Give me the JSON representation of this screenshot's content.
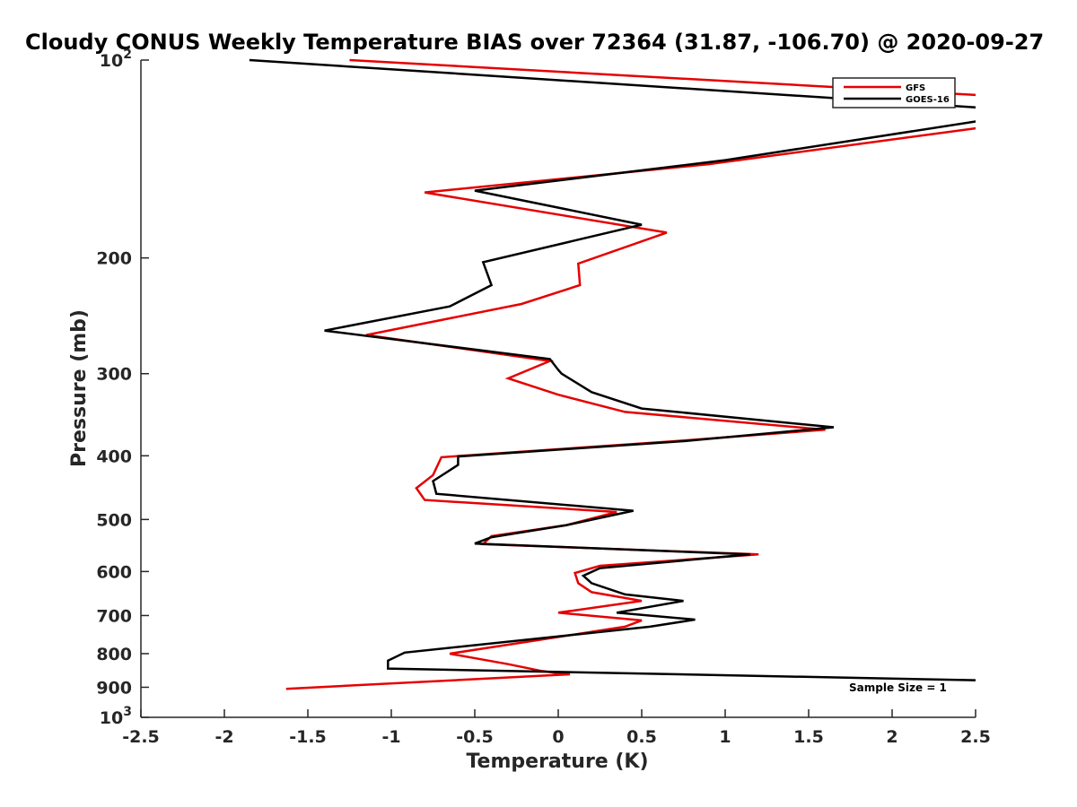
{
  "chart_data": {
    "type": "line",
    "title": "Cloudy CONUS Weekly Temperature BIAS over 72364 (31.87, -106.70) @ 2020-09-27",
    "xlabel": "Temperature (K)",
    "ylabel": "Pressure (mb)",
    "xlim": [
      -2.5,
      2.5
    ],
    "ylim": [
      100,
      1000
    ],
    "y_scale": "log",
    "y_reversed": true,
    "grid": false,
    "legend_position": "top-right",
    "x_ticks": [
      "-2.5",
      "-2",
      "-1.5",
      "-1",
      "-0.5",
      "0",
      "0.5",
      "1",
      "1.5",
      "2",
      "2.5"
    ],
    "x_tick_values": [
      -2.5,
      -2,
      -1.5,
      -1,
      -0.5,
      0,
      0.5,
      1,
      1.5,
      2,
      2.5
    ],
    "y_tick_values": [
      100,
      200,
      300,
      400,
      500,
      600,
      700,
      800,
      900,
      1000
    ],
    "y_ticks": [
      {
        "base": "10",
        "exp": "2"
      },
      {
        "base": "200",
        "exp": ""
      },
      {
        "base": "300",
        "exp": ""
      },
      {
        "base": "400",
        "exp": ""
      },
      {
        "base": "500",
        "exp": ""
      },
      {
        "base": "600",
        "exp": ""
      },
      {
        "base": "700",
        "exp": ""
      },
      {
        "base": "800",
        "exp": ""
      },
      {
        "base": "900",
        "exp": ""
      },
      {
        "base": "10",
        "exp": "3"
      }
    ],
    "series": [
      {
        "name": "GFS",
        "color": "#e60000",
        "points": [
          [
            -1.25,
            100
          ],
          [
            2.5,
            113
          ],
          [
            2.6,
            115
          ],
          [
            2.6,
            125
          ],
          [
            2.5,
            127
          ],
          [
            0.9,
            144
          ],
          [
            -0.8,
            159
          ],
          [
            0.65,
            183
          ],
          [
            0.12,
            204
          ],
          [
            0.13,
            220
          ],
          [
            -0.22,
            235
          ],
          [
            -1.15,
            262
          ],
          [
            -0.05,
            287
          ],
          [
            -0.3,
            305
          ],
          [
            0.0,
            323
          ],
          [
            0.4,
            343
          ],
          [
            1.6,
            365
          ],
          [
            0.7,
            380
          ],
          [
            -0.7,
            402
          ],
          [
            -0.75,
            428
          ],
          [
            -0.85,
            448
          ],
          [
            -0.8,
            467
          ],
          [
            0.35,
            487
          ],
          [
            0.05,
            510
          ],
          [
            -0.4,
            530
          ],
          [
            -0.45,
            545
          ],
          [
            1.2,
            565
          ],
          [
            0.25,
            588
          ],
          [
            0.1,
            603
          ],
          [
            0.12,
            625
          ],
          [
            0.2,
            645
          ],
          [
            0.5,
            665
          ],
          [
            0.0,
            693
          ],
          [
            0.5,
            712
          ],
          [
            0.4,
            728
          ],
          [
            -0.65,
            800
          ],
          [
            -0.3,
            830
          ],
          [
            -0.1,
            850
          ],
          [
            0.0,
            857
          ],
          [
            0.07,
            860
          ],
          [
            -1.63,
            905
          ]
        ]
      },
      {
        "name": "GOES-16",
        "color": "#000000",
        "points": [
          [
            -1.85,
            100
          ],
          [
            2.5,
            118
          ],
          [
            2.6,
            120
          ],
          [
            2.6,
            123
          ],
          [
            2.5,
            124
          ],
          [
            1.0,
            142
          ],
          [
            -0.5,
            158
          ],
          [
            0.5,
            178
          ],
          [
            -0.45,
            203
          ],
          [
            -0.4,
            220
          ],
          [
            -0.65,
            237
          ],
          [
            -1.4,
            258
          ],
          [
            -0.05,
            285
          ],
          [
            0.0,
            296
          ],
          [
            0.02,
            300
          ],
          [
            0.2,
            320
          ],
          [
            0.5,
            339
          ],
          [
            1.65,
            362
          ],
          [
            0.75,
            380
          ],
          [
            -0.6,
            401
          ],
          [
            -0.6,
            413
          ],
          [
            -0.75,
            437
          ],
          [
            -0.73,
            457
          ],
          [
            0.45,
            485
          ],
          [
            0.05,
            510
          ],
          [
            -0.4,
            532
          ],
          [
            -0.5,
            544
          ],
          [
            1.15,
            565
          ],
          [
            0.25,
            593
          ],
          [
            0.15,
            609
          ],
          [
            0.2,
            625
          ],
          [
            0.4,
            650
          ],
          [
            0.75,
            665
          ],
          [
            0.35,
            693
          ],
          [
            0.82,
            710
          ],
          [
            0.55,
            728
          ],
          [
            -0.92,
            797
          ],
          [
            -1.02,
            820
          ],
          [
            -1.02,
            843
          ],
          [
            2.5,
            878
          ]
        ]
      }
    ],
    "annotations": [
      "Sample Size = 1"
    ]
  }
}
